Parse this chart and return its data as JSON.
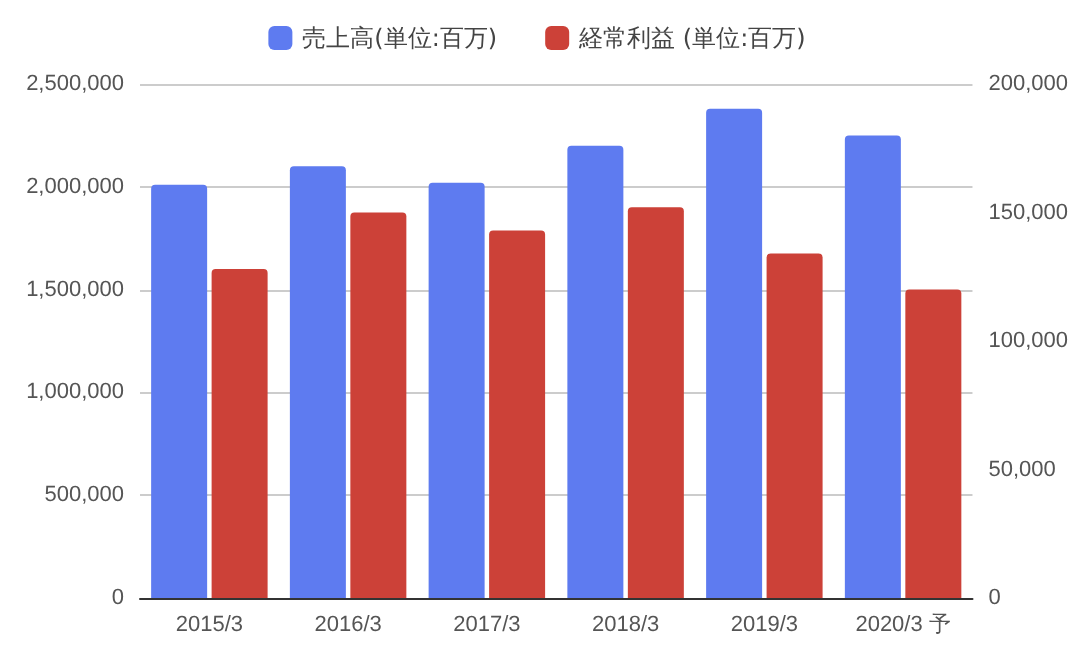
{
  "chart_data": {
    "type": "bar",
    "categories": [
      "2015/3",
      "2016/3",
      "2017/3",
      "2018/3",
      "2019/3",
      "2020/3 予"
    ],
    "series": [
      {
        "name": "売上高(単位:百万)",
        "color": "#5e7bf0",
        "values": [
          2010000,
          2100000,
          2020000,
          2200000,
          2380000,
          2250000
        ]
      },
      {
        "name": "経常利益 (単位:百万)",
        "color": "#cc4138",
        "axis": "y2",
        "values": [
          128000,
          150000,
          143000,
          152000,
          134000,
          120000
        ]
      }
    ],
    "ylim": [
      0,
      2500000
    ],
    "yticks": [
      0,
      {
        "value": 500000,
        "label": "500,000"
      },
      {
        "value": 1000000,
        "label": "1,000,000"
      },
      {
        "value": 1500000,
        "label": "1,500,000"
      },
      {
        "value": 2000000,
        "label": "2,000,000"
      },
      {
        "value": 2500000,
        "label": "2,500,000"
      }
    ],
    "y2lim": [
      0,
      200000
    ],
    "y2ticks": [
      0,
      {
        "value": 50000,
        "label": "50,000"
      },
      {
        "value": 100000,
        "label": "100,000"
      },
      {
        "value": 150000,
        "label": "150,000"
      },
      {
        "value": 200000,
        "label": "200,000"
      }
    ],
    "grid": "y",
    "legend": "top"
  }
}
